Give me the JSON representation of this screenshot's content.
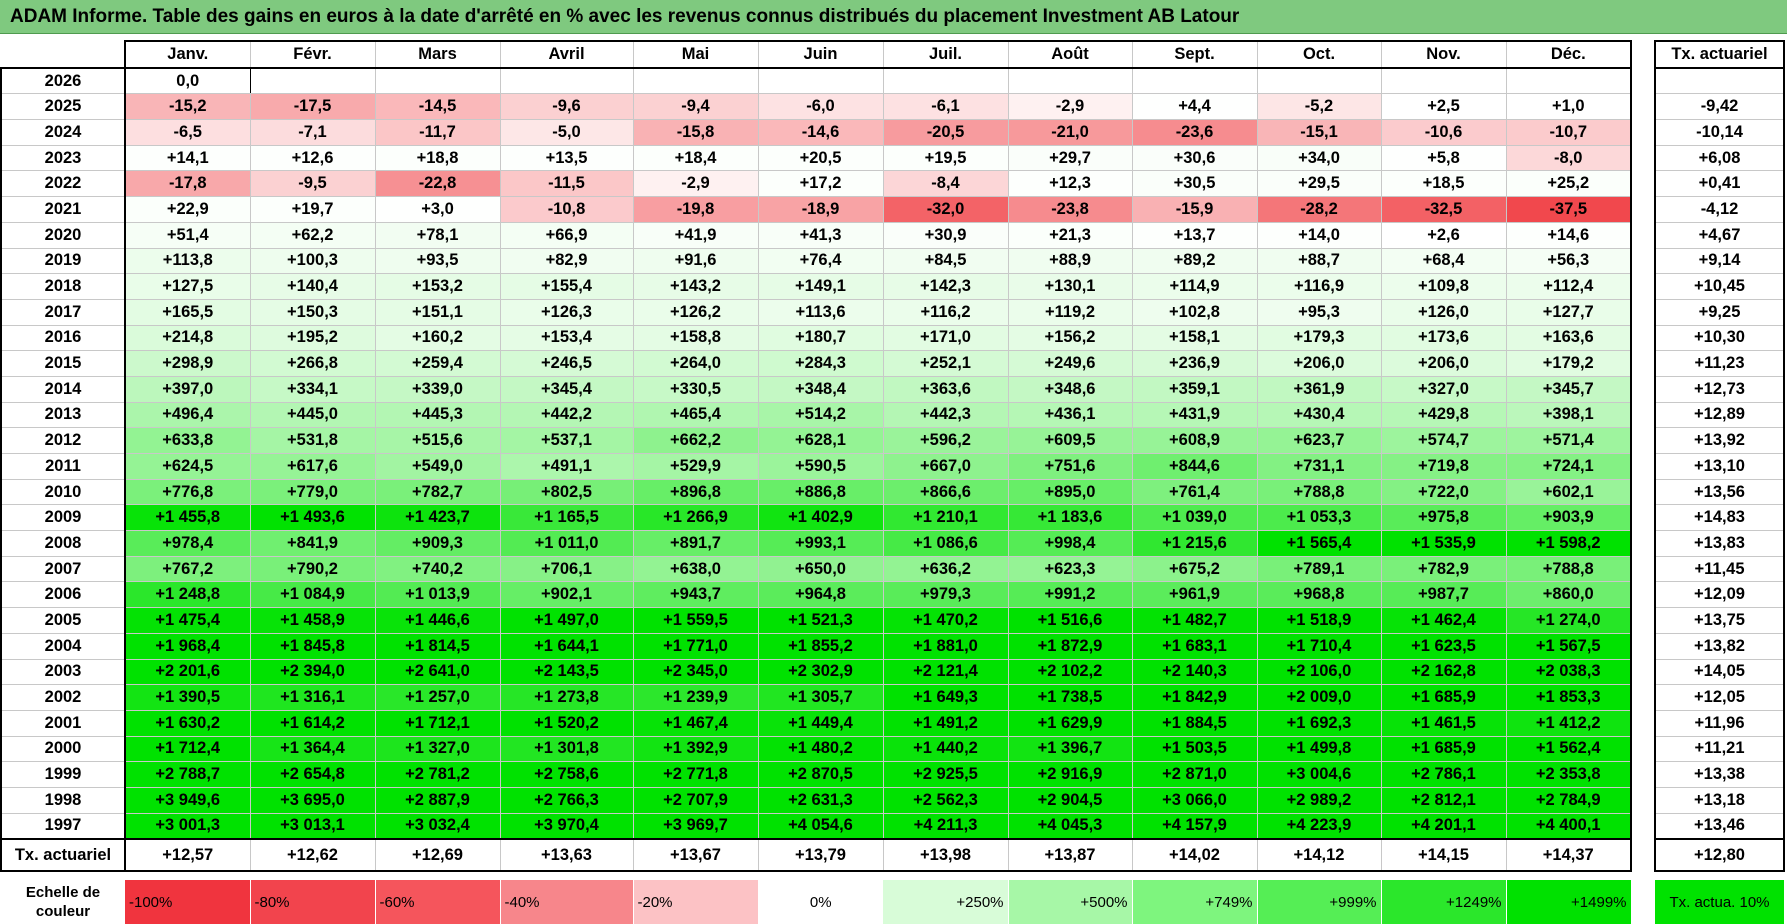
{
  "title": "ADAM Informe. Table des gains en euros à la date d'arrêté en % avec les revenus connus distribués du placement Investment AB Latour",
  "months": [
    "Janv.",
    "Févr.",
    "Mars",
    "Avril",
    "Mai",
    "Juin",
    "Juil.",
    "Août",
    "Sept.",
    "Oct.",
    "Nov.",
    "Déc."
  ],
  "annual_header": "Tx. actuariel",
  "rows": [
    {
      "year": "2026",
      "cells": [
        "0,0",
        "",
        "",
        "",
        "",
        "",
        "",
        "",
        "",
        "",
        "",
        ""
      ],
      "annual": ""
    },
    {
      "year": "2025",
      "cells": [
        "-15,2",
        "-17,5",
        "-14,5",
        "-9,6",
        "-9,4",
        "-6,0",
        "-6,1",
        "-2,9",
        "+4,4",
        "-5,2",
        "+2,5",
        "+1,0"
      ],
      "annual": "-9,42"
    },
    {
      "year": "2024",
      "cells": [
        "-6,5",
        "-7,1",
        "-11,7",
        "-5,0",
        "-15,8",
        "-14,6",
        "-20,5",
        "-21,0",
        "-23,6",
        "-15,1",
        "-10,6",
        "-10,7"
      ],
      "annual": "-10,14"
    },
    {
      "year": "2023",
      "cells": [
        "+14,1",
        "+12,6",
        "+18,8",
        "+13,5",
        "+18,4",
        "+20,5",
        "+19,5",
        "+29,7",
        "+30,6",
        "+34,0",
        "+5,8",
        "-8,0"
      ],
      "annual": "+6,08"
    },
    {
      "year": "2022",
      "cells": [
        "-17,8",
        "-9,5",
        "-22,8",
        "-11,5",
        "-2,9",
        "+17,2",
        "-8,4",
        "+12,3",
        "+30,5",
        "+29,5",
        "+18,5",
        "+25,2"
      ],
      "annual": "+0,41"
    },
    {
      "year": "2021",
      "cells": [
        "+22,9",
        "+19,7",
        "+3,0",
        "-10,8",
        "-19,8",
        "-18,9",
        "-32,0",
        "-23,8",
        "-15,9",
        "-28,2",
        "-32,5",
        "-37,5"
      ],
      "annual": "-4,12"
    },
    {
      "year": "2020",
      "cells": [
        "+51,4",
        "+62,2",
        "+78,1",
        "+66,9",
        "+41,9",
        "+41,3",
        "+30,9",
        "+21,3",
        "+13,7",
        "+14,0",
        "+2,6",
        "+14,6"
      ],
      "annual": "+4,67"
    },
    {
      "year": "2019",
      "cells": [
        "+113,8",
        "+100,3",
        "+93,5",
        "+82,9",
        "+91,6",
        "+76,4",
        "+84,5",
        "+88,9",
        "+89,2",
        "+88,7",
        "+68,4",
        "+56,3"
      ],
      "annual": "+9,14"
    },
    {
      "year": "2018",
      "cells": [
        "+127,5",
        "+140,4",
        "+153,2",
        "+155,4",
        "+143,2",
        "+149,1",
        "+142,3",
        "+130,1",
        "+114,9",
        "+116,9",
        "+109,8",
        "+112,4"
      ],
      "annual": "+10,45"
    },
    {
      "year": "2017",
      "cells": [
        "+165,5",
        "+150,3",
        "+151,1",
        "+126,3",
        "+126,2",
        "+113,6",
        "+116,2",
        "+119,2",
        "+102,8",
        "+95,3",
        "+126,0",
        "+127,7"
      ],
      "annual": "+9,25"
    },
    {
      "year": "2016",
      "cells": [
        "+214,8",
        "+195,2",
        "+160,2",
        "+153,4",
        "+158,8",
        "+180,7",
        "+171,0",
        "+156,2",
        "+158,1",
        "+179,3",
        "+173,6",
        "+163,6"
      ],
      "annual": "+10,30"
    },
    {
      "year": "2015",
      "cells": [
        "+298,9",
        "+266,8",
        "+259,4",
        "+246,5",
        "+264,0",
        "+284,3",
        "+252,1",
        "+249,6",
        "+236,9",
        "+206,0",
        "+206,0",
        "+179,2"
      ],
      "annual": "+11,23"
    },
    {
      "year": "2014",
      "cells": [
        "+397,0",
        "+334,1",
        "+339,0",
        "+345,4",
        "+330,5",
        "+348,4",
        "+363,6",
        "+348,6",
        "+359,1",
        "+361,9",
        "+327,0",
        "+345,7"
      ],
      "annual": "+12,73"
    },
    {
      "year": "2013",
      "cells": [
        "+496,4",
        "+445,0",
        "+445,3",
        "+442,2",
        "+465,4",
        "+514,2",
        "+442,3",
        "+436,1",
        "+431,9",
        "+430,4",
        "+429,8",
        "+398,1"
      ],
      "annual": "+12,89"
    },
    {
      "year": "2012",
      "cells": [
        "+633,8",
        "+531,8",
        "+515,6",
        "+537,1",
        "+662,2",
        "+628,1",
        "+596,2",
        "+609,5",
        "+608,9",
        "+623,7",
        "+574,7",
        "+571,4"
      ],
      "annual": "+13,92"
    },
    {
      "year": "2011",
      "cells": [
        "+624,5",
        "+617,6",
        "+549,0",
        "+491,1",
        "+529,9",
        "+590,5",
        "+667,0",
        "+751,6",
        "+844,6",
        "+731,1",
        "+719,8",
        "+724,1"
      ],
      "annual": "+13,10"
    },
    {
      "year": "2010",
      "cells": [
        "+776,8",
        "+779,0",
        "+782,7",
        "+802,5",
        "+896,8",
        "+886,8",
        "+866,6",
        "+895,0",
        "+761,4",
        "+788,8",
        "+722,0",
        "+602,1"
      ],
      "annual": "+13,56"
    },
    {
      "year": "2009",
      "cells": [
        "+1 455,8",
        "+1 493,6",
        "+1 423,7",
        "+1 165,5",
        "+1 266,9",
        "+1 402,9",
        "+1 210,1",
        "+1 183,6",
        "+1 039,0",
        "+1 053,3",
        "+975,8",
        "+903,9"
      ],
      "annual": "+14,83"
    },
    {
      "year": "2008",
      "cells": [
        "+978,4",
        "+841,9",
        "+909,3",
        "+1 011,0",
        "+891,7",
        "+993,1",
        "+1 086,6",
        "+998,4",
        "+1 215,6",
        "+1 565,4",
        "+1 535,9",
        "+1 598,2"
      ],
      "annual": "+13,83"
    },
    {
      "year": "2007",
      "cells": [
        "+767,2",
        "+790,2",
        "+740,2",
        "+706,1",
        "+638,0",
        "+650,0",
        "+636,2",
        "+623,3",
        "+675,2",
        "+789,1",
        "+782,9",
        "+788,8"
      ],
      "annual": "+11,45"
    },
    {
      "year": "2006",
      "cells": [
        "+1 248,8",
        "+1 084,9",
        "+1 013,9",
        "+902,1",
        "+943,7",
        "+964,8",
        "+979,3",
        "+991,2",
        "+961,9",
        "+968,8",
        "+987,7",
        "+860,0"
      ],
      "annual": "+12,09"
    },
    {
      "year": "2005",
      "cells": [
        "+1 475,4",
        "+1 458,9",
        "+1 446,6",
        "+1 497,0",
        "+1 559,5",
        "+1 521,3",
        "+1 470,2",
        "+1 516,6",
        "+1 482,7",
        "+1 518,9",
        "+1 462,4",
        "+1 274,0"
      ],
      "annual": "+13,75"
    },
    {
      "year": "2004",
      "cells": [
        "+1 968,4",
        "+1 845,8",
        "+1 814,5",
        "+1 644,1",
        "+1 771,0",
        "+1 855,2",
        "+1 881,0",
        "+1 872,9",
        "+1 683,1",
        "+1 710,4",
        "+1 623,5",
        "+1 567,5"
      ],
      "annual": "+13,82"
    },
    {
      "year": "2003",
      "cells": [
        "+2 201,6",
        "+2 394,0",
        "+2 641,0",
        "+2 143,5",
        "+2 345,0",
        "+2 302,9",
        "+2 121,4",
        "+2 102,2",
        "+2 140,3",
        "+2 106,0",
        "+2 162,8",
        "+2 038,3"
      ],
      "annual": "+14,05"
    },
    {
      "year": "2002",
      "cells": [
        "+1 390,5",
        "+1 316,1",
        "+1 257,0",
        "+1 273,8",
        "+1 239,9",
        "+1 305,7",
        "+1 649,3",
        "+1 738,5",
        "+1 842,9",
        "+2 009,0",
        "+1 685,9",
        "+1 853,3"
      ],
      "annual": "+12,05"
    },
    {
      "year": "2001",
      "cells": [
        "+1 630,2",
        "+1 614,2",
        "+1 712,1",
        "+1 520,2",
        "+1 467,4",
        "+1 449,4",
        "+1 491,2",
        "+1 629,9",
        "+1 884,5",
        "+1 692,3",
        "+1 461,5",
        "+1 412,2"
      ],
      "annual": "+11,96"
    },
    {
      "year": "2000",
      "cells": [
        "+1 712,4",
        "+1 364,4",
        "+1 327,0",
        "+1 301,8",
        "+1 392,9",
        "+1 480,2",
        "+1 440,2",
        "+1 396,7",
        "+1 503,5",
        "+1 499,8",
        "+1 685,9",
        "+1 562,4"
      ],
      "annual": "+11,21"
    },
    {
      "year": "1999",
      "cells": [
        "+2 788,7",
        "+2 654,8",
        "+2 781,2",
        "+2 758,6",
        "+2 771,8",
        "+2 870,5",
        "+2 925,5",
        "+2 916,9",
        "+2 871,0",
        "+3 004,6",
        "+2 786,1",
        "+2 353,8"
      ],
      "annual": "+13,38"
    },
    {
      "year": "1998",
      "cells": [
        "+3 949,6",
        "+3 695,0",
        "+2 887,9",
        "+2 766,3",
        "+2 707,9",
        "+2 631,3",
        "+2 562,3",
        "+2 904,5",
        "+3 066,0",
        "+2 989,2",
        "+2 812,1",
        "+2 784,9"
      ],
      "annual": "+13,18"
    },
    {
      "year": "1997",
      "cells": [
        "+3 001,3",
        "+3 013,1",
        "+3 032,4",
        "+3 970,4",
        "+3 969,7",
        "+4 054,6",
        "+4 211,3",
        "+4 045,3",
        "+4 157,9",
        "+4 223,9",
        "+4 201,1",
        "+4 400,1"
      ],
      "annual": "+13,46"
    }
  ],
  "footer": {
    "label": "Tx. actuariel",
    "values": [
      "+12,57",
      "+12,62",
      "+12,69",
      "+13,63",
      "+13,67",
      "+13,79",
      "+13,98",
      "+13,87",
      "+14,02",
      "+14,12",
      "+14,15",
      "+14,37"
    ],
    "annual": "+12,80"
  },
  "scale": {
    "label": "Echelle de couleur",
    "steps": [
      {
        "text": "-100%",
        "color": "#f0343e"
      },
      {
        "text": "-80%",
        "color": "#f2444d"
      },
      {
        "text": "-60%",
        "color": "#f5555c"
      },
      {
        "text": "-40%",
        "color": "#f7868b"
      },
      {
        "text": "-20%",
        "color": "#fcc2c5"
      },
      {
        "text": "0%",
        "color": "#ffffff"
      },
      {
        "text": "+250%",
        "color": "#d8fcd8"
      },
      {
        "text": "+500%",
        "color": "#a7f7a7"
      },
      {
        "text": "+749%",
        "color": "#7ef57e"
      },
      {
        "text": "+999%",
        "color": "#55ee55"
      },
      {
        "text": "+1249%",
        "color": "#2be72b"
      },
      {
        "text": "+1499%",
        "color": "#00e100"
      }
    ],
    "actua_label": "Tx. actua. 10%",
    "actua_color": "#00e200"
  }
}
